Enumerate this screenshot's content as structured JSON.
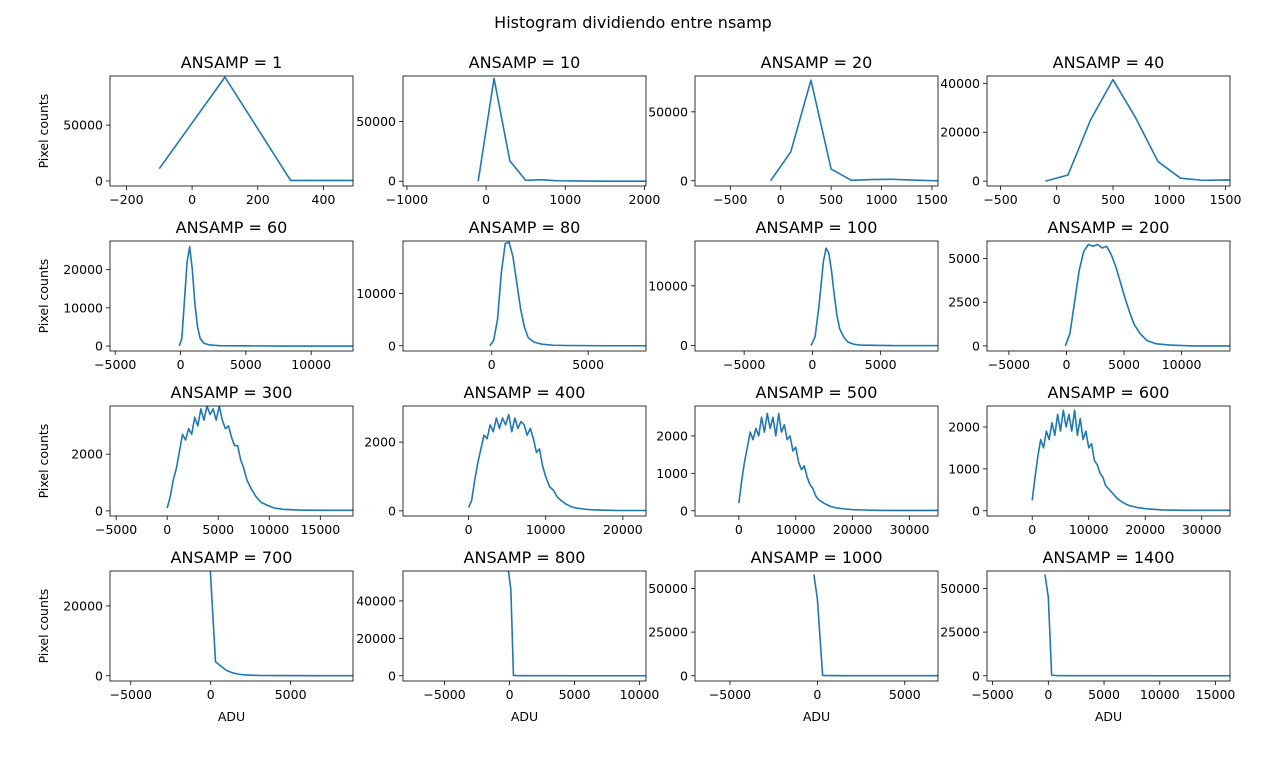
{
  "figure": {
    "suptitle": "Histogram dividiendo entre nsamp",
    "line_color": "#1f77b4"
  },
  "chart_data": [
    {
      "type": "line",
      "title": "ANSAMP = 1",
      "xlabel": "",
      "ylabel": "Pixel counts",
      "xlim": [
        -250,
        490
      ],
      "ylim": [
        -4500,
        94000
      ],
      "xticks": [
        -200,
        0,
        200,
        400
      ],
      "xtick_labels": [
        "−200",
        "0",
        "200",
        "400"
      ],
      "yticks": [
        0,
        50000
      ],
      "ytick_labels": [
        "0",
        "50000"
      ],
      "x": [
        -100,
        100,
        300,
        500
      ],
      "y": [
        11000,
        93000,
        500,
        500
      ]
    },
    {
      "type": "line",
      "title": "ANSAMP = 10",
      "xlabel": "",
      "ylabel": "",
      "xlim": [
        -1050,
        2020
      ],
      "ylim": [
        -4000,
        88000
      ],
      "xticks": [
        -1000,
        0,
        1000,
        2000
      ],
      "xtick_labels": [
        "−1000",
        "0",
        "1000",
        "2000"
      ],
      "yticks": [
        0,
        50000
      ],
      "ytick_labels": [
        "0",
        "50000"
      ],
      "x": [
        -100,
        100,
        300,
        500,
        700,
        900,
        1100,
        1300,
        1500,
        1700,
        1900,
        2100
      ],
      "y": [
        0,
        86000,
        17000,
        700,
        1300,
        400,
        200,
        100,
        50,
        0,
        0,
        0
      ]
    },
    {
      "type": "line",
      "title": "ANSAMP = 20",
      "xlabel": "",
      "ylabel": "",
      "xlim": [
        -850,
        1560
      ],
      "ylim": [
        -3800,
        76000
      ],
      "xticks": [
        -500,
        0,
        500,
        1000,
        1500
      ],
      "xtick_labels": [
        "−500",
        "0",
        "500",
        "1000",
        "1500"
      ],
      "yticks": [
        0,
        50000
      ],
      "ytick_labels": [
        "0",
        "50000"
      ],
      "x": [
        -100,
        100,
        300,
        500,
        700,
        900,
        1100,
        1300,
        1500,
        1700
      ],
      "y": [
        0,
        21000,
        73000,
        8500,
        300,
        900,
        1100,
        500,
        100,
        50
      ]
    },
    {
      "type": "line",
      "title": "ANSAMP = 40",
      "xlabel": "",
      "ylabel": "",
      "xlim": [
        -620,
        1540
      ],
      "ylim": [
        -2000,
        43000
      ],
      "xticks": [
        -500,
        0,
        500,
        1000,
        1500
      ],
      "xtick_labels": [
        "−500",
        "0",
        "500",
        "1000",
        "1500"
      ],
      "yticks": [
        0,
        20000,
        40000
      ],
      "ytick_labels": [
        "0",
        "20000",
        "40000"
      ],
      "x": [
        -100,
        100,
        300,
        500,
        700,
        900,
        1100,
        1300,
        1500,
        1700
      ],
      "y": [
        0,
        2500,
        25000,
        41500,
        26000,
        8000,
        1200,
        300,
        500,
        100
      ]
    },
    {
      "type": "line",
      "title": "ANSAMP = 60",
      "xlabel": "",
      "ylabel": "Pixel counts",
      "xlim": [
        -5400,
        13200
      ],
      "ylim": [
        -1300,
        27500
      ],
      "xticks": [
        -5000,
        0,
        5000,
        10000
      ],
      "xtick_labels": [
        "−5000",
        "0",
        "5000",
        "10000"
      ],
      "yticks": [
        0,
        10000,
        20000
      ],
      "ytick_labels": [
        "0",
        "10000",
        "20000"
      ],
      "x": [
        -100,
        100,
        300,
        500,
        700,
        900,
        1100,
        1300,
        1500,
        1800,
        2200,
        3000,
        5000,
        8000,
        13200
      ],
      "y": [
        0,
        2000,
        12000,
        22000,
        26000,
        20000,
        11000,
        5000,
        2000,
        700,
        300,
        100,
        50,
        0,
        0
      ]
    },
    {
      "type": "line",
      "title": "ANSAMP = 80",
      "xlabel": "",
      "ylabel": "",
      "xlim": [
        -4600,
        8000
      ],
      "ylim": [
        -1000,
        20000
      ],
      "xticks": [
        0,
        5000
      ],
      "xtick_labels": [
        "0",
        "5000"
      ],
      "yticks": [
        0,
        10000
      ],
      "ytick_labels": [
        "0",
        "10000"
      ],
      "x": [
        -100,
        100,
        300,
        500,
        700,
        900,
        1100,
        1300,
        1500,
        1700,
        1900,
        2200,
        2600,
        3200,
        4000,
        6000,
        8000
      ],
      "y": [
        0,
        1000,
        5000,
        14000,
        19500,
        19800,
        17000,
        12000,
        7000,
        3500,
        1500,
        700,
        300,
        100,
        50,
        0,
        0
      ]
    },
    {
      "type": "line",
      "title": "ANSAMP = 100",
      "xlabel": "",
      "ylabel": "",
      "xlim": [
        -8600,
        9200
      ],
      "ylim": [
        -900,
        17500
      ],
      "xticks": [
        -5000,
        0,
        5000
      ],
      "xtick_labels": [
        "−5000",
        "0",
        "5000"
      ],
      "yticks": [
        0,
        10000
      ],
      "ytick_labels": [
        "0",
        "10000"
      ],
      "x": [
        -100,
        200,
        500,
        800,
        1000,
        1200,
        1400,
        1600,
        1800,
        2000,
        2300,
        2600,
        3000,
        3500,
        4500,
        6000,
        9200
      ],
      "y": [
        0,
        1500,
        7000,
        14000,
        16300,
        15500,
        12500,
        8500,
        5000,
        2800,
        1400,
        600,
        250,
        100,
        50,
        0,
        0
      ]
    },
    {
      "type": "line",
      "title": "ANSAMP = 200",
      "xlabel": "",
      "ylabel": "",
      "xlim": [
        -6900,
        14200
      ],
      "ylim": [
        -290,
        6000
      ],
      "xticks": [
        -5000,
        0,
        5000,
        10000
      ],
      "xtick_labels": [
        "−5000",
        "0",
        "5000",
        "10000"
      ],
      "yticks": [
        0,
        2500,
        5000
      ],
      "ytick_labels": [
        "0",
        "2500",
        "5000"
      ],
      "x": [
        -100,
        300,
        700,
        1100,
        1500,
        1900,
        2300,
        2700,
        3100,
        3500,
        3900,
        4300,
        4700,
        5100,
        5500,
        5900,
        6400,
        7000,
        7800,
        9000,
        11000,
        14200
      ],
      "y": [
        0,
        700,
        2500,
        4300,
        5400,
        5800,
        5700,
        5800,
        5600,
        5700,
        5200,
        4500,
        3600,
        2700,
        1900,
        1200,
        700,
        300,
        120,
        50,
        0,
        0
      ]
    },
    {
      "type": "line",
      "title": "ANSAMP = 300",
      "xlabel": "",
      "ylabel": "Pixel counts",
      "xlim": [
        -5600,
        18200
      ],
      "ylim": [
        -180,
        3700
      ],
      "xticks": [
        -5000,
        0,
        5000,
        10000,
        15000
      ],
      "xtick_labels": [
        "−5000",
        "0",
        "5000",
        "10000",
        "15000"
      ],
      "yticks": [
        0,
        2000
      ],
      "ytick_labels": [
        "0",
        "2000"
      ],
      "x": [
        0,
        300,
        600,
        900,
        1200,
        1500,
        1800,
        2100,
        2400,
        2700,
        3000,
        3300,
        3600,
        3900,
        4200,
        4500,
        4800,
        5100,
        5400,
        5700,
        6000,
        6300,
        6600,
        6900,
        7200,
        7500,
        7800,
        8200,
        8700,
        9200,
        9800,
        10500,
        11500,
        13000,
        15000,
        18200
      ],
      "y": [
        100,
        500,
        1100,
        1500,
        2100,
        2700,
        2500,
        2900,
        2700,
        3300,
        3000,
        3600,
        3200,
        3700,
        3400,
        3600,
        3200,
        3700,
        3200,
        2900,
        3000,
        2600,
        2300,
        2300,
        1800,
        1500,
        1100,
        800,
        500,
        300,
        200,
        100,
        50,
        30,
        20,
        20
      ]
    },
    {
      "type": "line",
      "title": "ANSAMP = 400",
      "xlabel": "",
      "ylabel": "",
      "xlim": [
        -8500,
        23000
      ],
      "ylim": [
        -150,
        3050
      ],
      "xticks": [
        0,
        10000,
        20000
      ],
      "xtick_labels": [
        "0",
        "10000",
        "20000"
      ],
      "yticks": [
        0,
        2000
      ],
      "ytick_labels": [
        "0",
        "2000"
      ],
      "x": [
        0,
        400,
        800,
        1200,
        1600,
        2000,
        2400,
        2800,
        3200,
        3600,
        4000,
        4400,
        4800,
        5200,
        5600,
        6000,
        6400,
        6800,
        7200,
        7600,
        8000,
        8400,
        8800,
        9200,
        9600,
        10000,
        10500,
        11000,
        11500,
        12000,
        12600,
        13300,
        14000,
        15000,
        16000,
        17500,
        19500,
        23000
      ],
      "y": [
        100,
        300,
        900,
        1400,
        1800,
        2200,
        2100,
        2500,
        2300,
        2700,
        2400,
        2700,
        2500,
        2800,
        2300,
        2700,
        2400,
        2600,
        2500,
        2200,
        2400,
        2100,
        1700,
        1800,
        1300,
        1000,
        700,
        600,
        400,
        300,
        200,
        120,
        80,
        50,
        30,
        20,
        10,
        10
      ]
    },
    {
      "type": "line",
      "title": "ANSAMP = 500",
      "xlabel": "",
      "ylabel": "",
      "xlim": [
        -7700,
        35000
      ],
      "ylim": [
        -140,
        2800
      ],
      "xticks": [
        0,
        10000,
        20000,
        30000
      ],
      "xtick_labels": [
        "0",
        "10000",
        "20000",
        "30000"
      ],
      "yticks": [
        0,
        1000,
        2000
      ],
      "ytick_labels": [
        "0",
        "1000",
        "2000"
      ],
      "x": [
        0,
        500,
        1000,
        1500,
        2000,
        2500,
        3000,
        3500,
        4000,
        4500,
        5000,
        5500,
        6000,
        6500,
        7000,
        7500,
        8000,
        8500,
        9000,
        9500,
        10000,
        10500,
        11000,
        11500,
        12000,
        12500,
        13000,
        13500,
        14000,
        15000,
        16000,
        17000,
        18500,
        20000,
        22000,
        25000,
        30000,
        35000
      ],
      "y": [
        200,
        800,
        1300,
        1700,
        2100,
        1900,
        2200,
        2000,
        2500,
        2100,
        2600,
        2200,
        2500,
        2000,
        2600,
        2100,
        2300,
        1900,
        2000,
        1600,
        1700,
        1300,
        1100,
        1200,
        900,
        700,
        600,
        400,
        300,
        200,
        120,
        80,
        50,
        30,
        20,
        10,
        10,
        10
      ]
    },
    {
      "type": "line",
      "title": "ANSAMP = 600",
      "xlabel": "",
      "ylabel": "",
      "xlim": [
        -8000,
        35000
      ],
      "ylim": [
        -125,
        2500
      ],
      "xticks": [
        0,
        10000,
        20000,
        30000
      ],
      "xtick_labels": [
        "0",
        "10000",
        "20000",
        "30000"
      ],
      "yticks": [
        0,
        1000,
        2000
      ],
      "ytick_labels": [
        "0",
        "1000",
        "2000"
      ],
      "x": [
        0,
        500,
        1000,
        1500,
        2000,
        2500,
        3000,
        3500,
        4000,
        4500,
        5000,
        5500,
        6000,
        6500,
        7000,
        7500,
        8000,
        8500,
        9000,
        9500,
        10000,
        10500,
        11000,
        11500,
        12000,
        12500,
        13000,
        14000,
        15000,
        16000,
        17000,
        18500,
        20000,
        23000,
        27000,
        35000
      ],
      "y": [
        250,
        800,
        1300,
        1700,
        1500,
        1900,
        1700,
        2100,
        1800,
        2300,
        1900,
        2400,
        2000,
        2300,
        1900,
        2400,
        1800,
        2200,
        1700,
        1900,
        1500,
        1600,
        1200,
        1100,
        900,
        800,
        600,
        450,
        300,
        200,
        130,
        80,
        50,
        20,
        10,
        10
      ]
    },
    {
      "type": "line",
      "title": "ANSAMP = 700",
      "xlabel": "ADU",
      "ylabel": "Pixel counts",
      "xlim": [
        -6300,
        8900
      ],
      "ylim": [
        -1500,
        30000
      ],
      "xticks": [
        -5000,
        0,
        5000
      ],
      "xtick_labels": [
        "−5000",
        "0",
        "5000"
      ],
      "yticks": [
        0,
        20000
      ],
      "ytick_labels": [
        "0",
        "20000"
      ],
      "x": [
        -200,
        0,
        300,
        700,
        1000,
        1400,
        1800,
        2300,
        3000,
        4500,
        6500,
        8900
      ],
      "y": [
        45000,
        28000,
        4000,
        2500,
        1500,
        800,
        400,
        200,
        100,
        50,
        20,
        20
      ]
    },
    {
      "type": "line",
      "title": "ANSAMP = 800",
      "xlabel": "ADU",
      "ylabel": "",
      "xlim": [
        -8200,
        10500
      ],
      "ylim": [
        -2800,
        56000
      ],
      "xticks": [
        -5000,
        0,
        5000,
        10000
      ],
      "xtick_labels": [
        "−5000",
        "0",
        "5000",
        "10000"
      ],
      "yticks": [
        0,
        20000,
        40000
      ],
      "ytick_labels": [
        "0",
        "20000",
        "40000"
      ],
      "x": [
        -100,
        100,
        300,
        600,
        1200,
        3000,
        6000,
        10500
      ],
      "y": [
        57000,
        46000,
        200,
        100,
        50,
        20,
        10,
        10
      ]
    },
    {
      "type": "line",
      "title": "ANSAMP = 1000",
      "xlabel": "ADU",
      "ylabel": "",
      "xlim": [
        -7000,
        6900
      ],
      "ylim": [
        -3000,
        60000
      ],
      "xticks": [
        -5000,
        0,
        5000
      ],
      "xtick_labels": [
        "−5000",
        "0",
        "5000"
      ],
      "yticks": [
        0,
        25000,
        50000
      ],
      "ytick_labels": [
        "0",
        "25000",
        "50000"
      ],
      "x": [
        -200,
        0,
        300,
        700,
        1500,
        3500,
        6900
      ],
      "y": [
        58000,
        44000,
        200,
        100,
        50,
        20,
        20
      ]
    },
    {
      "type": "line",
      "title": "ANSAMP = 1400",
      "xlabel": "ADU",
      "ylabel": "",
      "xlim": [
        -5500,
        16300
      ],
      "ylim": [
        -3000,
        60000
      ],
      "xticks": [
        -5000,
        0,
        5000,
        10000,
        15000
      ],
      "xtick_labels": [
        "−5000",
        "0",
        "5000",
        "10000",
        "15000"
      ],
      "yticks": [
        0,
        25000,
        50000
      ],
      "ytick_labels": [
        "0",
        "25000",
        "50000"
      ],
      "x": [
        -300,
        0,
        300,
        800,
        2000,
        5000,
        10000,
        16300
      ],
      "y": [
        58000,
        45000,
        300,
        100,
        50,
        20,
        10,
        10
      ]
    }
  ]
}
